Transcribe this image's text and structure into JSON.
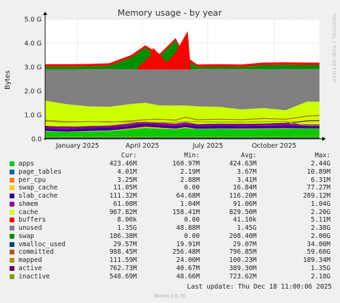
{
  "chart_data": {
    "type": "area",
    "title": "Memory usage - by year",
    "ylabel": "Bytes",
    "ylim": [
      0,
      5
    ],
    "y_unit": "G",
    "yticks": [
      "0.0",
      "1.0 G",
      "2.0 G",
      "3.0 G",
      "4.0 G",
      "5.0 G"
    ],
    "ytick_values": [
      0,
      1,
      2,
      3,
      4,
      5
    ],
    "x_range": [
      "2024-12-02",
      "2025-12-18"
    ],
    "xticks": [
      {
        "label": "January 2025",
        "date": "2025-01-16"
      },
      {
        "label": "April 2025",
        "date": "2025-04-16"
      },
      {
        "label": "July 2025",
        "date": "2025-07-16"
      },
      {
        "label": "October 2025",
        "date": "2025-10-16"
      }
    ],
    "grid": true,
    "x": [
      "2024-12-02",
      "2025-01-01",
      "2025-02-01",
      "2025-03-01",
      "2025-04-01",
      "2025-04-20",
      "2025-05-10",
      "2025-06-01",
      "2025-06-15",
      "2025-07-01",
      "2025-08-01",
      "2025-09-01",
      "2025-10-01",
      "2025-11-01",
      "2025-12-01",
      "2025-12-18"
    ],
    "series": [
      {
        "name": "apps",
        "color": "#00cc00",
        "values": [
          0.3,
          0.28,
          0.3,
          0.32,
          0.4,
          0.45,
          0.42,
          0.4,
          0.45,
          0.4,
          0.42,
          0.4,
          0.41,
          0.42,
          0.42,
          0.42
        ]
      },
      {
        "name": "page_tables",
        "color": "#0066b3",
        "values": [
          0.005,
          0.005,
          0.005,
          0.005,
          0.005,
          0.005,
          0.005,
          0.005,
          0.005,
          0.004,
          0.004,
          0.004,
          0.004,
          0.004,
          0.004,
          0.004
        ]
      },
      {
        "name": "per_cpu",
        "color": "#ff8000",
        "values": [
          0.003,
          0.003,
          0.003,
          0.003,
          0.003,
          0.003,
          0.003,
          0.003,
          0.003,
          0.003,
          0.003,
          0.003,
          0.003,
          0.003,
          0.003,
          0.003
        ]
      },
      {
        "name": "swap_cache",
        "color": "#ffcc00",
        "values": [
          0.02,
          0.01,
          0.02,
          0.02,
          0.03,
          0.05,
          0.04,
          0.02,
          0.03,
          0.01,
          0.01,
          0.02,
          0.02,
          0.02,
          0.01,
          0.01
        ]
      },
      {
        "name": "slab_cache",
        "color": "#330099",
        "values": [
          0.12,
          0.11,
          0.12,
          0.12,
          0.13,
          0.13,
          0.12,
          0.12,
          0.12,
          0.11,
          0.11,
          0.11,
          0.11,
          0.11,
          0.11,
          0.11
        ]
      },
      {
        "name": "shmem",
        "color": "#990099",
        "values": [
          0.1,
          0.09,
          0.09,
          0.09,
          0.09,
          0.09,
          0.09,
          0.09,
          0.09,
          0.09,
          0.09,
          0.09,
          0.09,
          0.09,
          0.06,
          0.06
        ]
      },
      {
        "name": "cache",
        "color": "#ccff00",
        "values": [
          1.05,
          0.95,
          0.82,
          0.78,
          0.8,
          0.78,
          0.72,
          0.75,
          0.7,
          0.74,
          0.7,
          0.6,
          0.65,
          0.55,
          0.95,
          0.95
        ]
      },
      {
        "name": "buffers",
        "color": "#ff0000",
        "values": [
          0.0,
          0.0,
          0.0,
          0.0,
          0.0,
          0.0,
          0.0,
          0.0,
          0.0,
          0.0,
          0.0,
          0.0,
          0.0,
          0.0,
          0.0,
          0.0
        ]
      },
      {
        "name": "unused",
        "color": "#808080",
        "values": [
          1.3,
          1.45,
          1.55,
          1.58,
          1.45,
          1.4,
          1.5,
          1.52,
          1.5,
          1.55,
          1.58,
          1.68,
          1.62,
          1.72,
          1.35,
          1.35
        ]
      },
      {
        "name": "swap",
        "color": "#008f00",
        "values": [
          0.12,
          0.12,
          0.12,
          0.14,
          0.5,
          0.9,
          0.55,
          1.2,
          0.45,
          0.1,
          0.1,
          0.1,
          0.18,
          0.18,
          0.18,
          0.18
        ]
      }
    ],
    "lines": [
      {
        "name": "vmalloc_used",
        "color": "#00487d",
        "values": [
          0.03,
          0.03,
          0.03,
          0.03,
          0.03,
          0.03,
          0.03,
          0.03,
          0.03,
          0.03,
          0.03,
          0.03,
          0.03,
          0.03,
          0.03,
          0.03
        ]
      },
      {
        "name": "committed",
        "color": "#b35a00",
        "values": [
          0.75,
          0.7,
          0.72,
          0.7,
          0.75,
          0.8,
          0.82,
          0.78,
          0.9,
          0.8,
          0.82,
          0.8,
          0.85,
          0.82,
          0.95,
          0.98
        ]
      },
      {
        "name": "mapped",
        "color": "#b38f00",
        "values": [
          0.1,
          0.1,
          0.1,
          0.1,
          0.1,
          0.1,
          0.1,
          0.1,
          0.1,
          0.1,
          0.1,
          0.1,
          0.1,
          0.1,
          0.11,
          0.11
        ]
      },
      {
        "name": "active",
        "color": "#6b006b",
        "values": [
          0.5,
          0.5,
          0.48,
          0.48,
          0.5,
          0.55,
          0.55,
          0.52,
          0.55,
          0.58,
          0.6,
          0.6,
          0.62,
          0.65,
          0.75,
          0.76
        ]
      },
      {
        "name": "inactive",
        "color": "#8f9c00",
        "values": [
          0.78,
          0.72,
          0.72,
          0.72,
          0.7,
          0.7,
          0.68,
          0.7,
          0.72,
          0.72,
          0.7,
          0.7,
          0.72,
          0.72,
          0.55,
          0.55
        ]
      }
    ],
    "swap_spike": {
      "x": [
        "2025-04-10",
        "2025-04-25",
        "2025-05-01",
        "2025-05-20",
        "2025-06-01",
        "2025-06-18",
        "2025-06-22"
      ],
      "top": [
        3.0,
        3.4,
        3.8,
        3.2,
        3.6,
        4.5,
        3.0
      ]
    }
  },
  "legend": {
    "headers": {
      "cur": "Cur:",
      "min": "Min:",
      "avg": "Avg:",
      "max": "Max:"
    },
    "rows": [
      {
        "name": "apps",
        "color": "#00cc00",
        "cur": "423.46M",
        "min": "160.97M",
        "avg": "424.63M",
        "max": "2.44G"
      },
      {
        "name": "page_tables",
        "color": "#0066b3",
        "cur": "4.01M",
        "min": "2.19M",
        "avg": "3.67M",
        "max": "10.89M"
      },
      {
        "name": "per_cpu",
        "color": "#ff8000",
        "cur": "3.25M",
        "min": "2.88M",
        "avg": "3.41M",
        "max": "6.31M"
      },
      {
        "name": "swap_cache",
        "color": "#ffcc00",
        "cur": "11.05M",
        "min": "0.00",
        "avg": "16.84M",
        "max": "77.27M"
      },
      {
        "name": "slab_cache",
        "color": "#330099",
        "cur": "111.32M",
        "min": "64.68M",
        "avg": "116.20M",
        "max": "289.12M"
      },
      {
        "name": "shmem",
        "color": "#990099",
        "cur": "61.08M",
        "min": "1.04M",
        "avg": "91.06M",
        "max": "1.04G"
      },
      {
        "name": "cache",
        "color": "#ccff00",
        "cur": "967.82M",
        "min": "158.41M",
        "avg": "829.50M",
        "max": "2.20G"
      },
      {
        "name": "buffers",
        "color": "#ff0000",
        "cur": "8.00k",
        "min": "0.00",
        "avg": "41.10k",
        "max": "5.11M"
      },
      {
        "name": "unused",
        "color": "#808080",
        "cur": "1.35G",
        "min": "48.88M",
        "avg": "1.45G",
        "max": "2.38G"
      },
      {
        "name": "swap",
        "color": "#008f00",
        "cur": "186.38M",
        "min": "0.00",
        "avg": "208.40M",
        "max": "2.00G"
      },
      {
        "name": "vmalloc_used",
        "color": "#00487d",
        "cur": "29.57M",
        "min": "19.91M",
        "avg": "29.07M",
        "max": "34.00M"
      },
      {
        "name": "committed",
        "color": "#b35a00",
        "cur": "988.45M",
        "min": "256.48M",
        "avg": "796.85M",
        "max": "59.60G"
      },
      {
        "name": "mapped",
        "color": "#b38f00",
        "cur": "111.59M",
        "min": "24.00M",
        "avg": "100.23M",
        "max": "189.34M"
      },
      {
        "name": "active",
        "color": "#6b006b",
        "cur": "762.73M",
        "min": "40.67M",
        "avg": "389.30M",
        "max": "1.35G"
      },
      {
        "name": "inactive",
        "color": "#8f9c00",
        "cur": "548.69M",
        "min": "48.66M",
        "avg": "723.62M",
        "max": "2.18G"
      }
    ]
  },
  "footer": {
    "last_update": "Last update: Thu Dec 18 11:00:06 2025",
    "munin": "Munin 2.0.76",
    "rrdtool": "RRDTOOL / TOBI OETIKER"
  }
}
